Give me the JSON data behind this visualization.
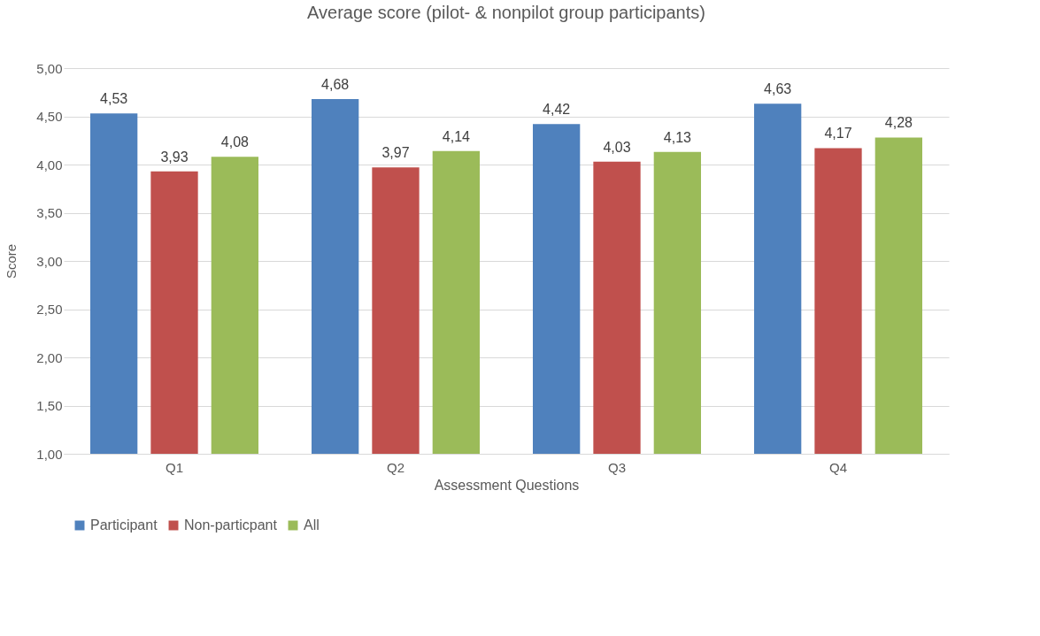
{
  "chart_data": {
    "type": "bar",
    "title": "Average score (pilot- & nonpilot group participants)",
    "xlabel": "Assessment Questions",
    "ylabel": "Score",
    "categories": [
      "Q1",
      "Q2",
      "Q3",
      "Q4"
    ],
    "series": [
      {
        "name": "Participant",
        "color": "#4f81bd",
        "values": [
          4.53,
          4.68,
          4.42,
          4.63
        ],
        "value_labels": [
          "4,53",
          "4,68",
          "4,42",
          "4,63"
        ]
      },
      {
        "name": "Non-particpant",
        "color": "#c0504d",
        "values": [
          3.93,
          3.97,
          4.03,
          4.17
        ],
        "value_labels": [
          "3,93",
          "3,97",
          "4,03",
          "4,17"
        ]
      },
      {
        "name": "All",
        "color": "#9bbb59",
        "values": [
          4.08,
          4.14,
          4.13,
          4.28
        ],
        "value_labels": [
          "4,08",
          "4,14",
          "4,13",
          "4,28"
        ]
      }
    ],
    "ylim": [
      1,
      5
    ],
    "yticks": [
      {
        "value": 1,
        "label": "1,00"
      },
      {
        "value": 1.5,
        "label": "1,50"
      },
      {
        "value": 2,
        "label": "2,00"
      },
      {
        "value": 2.5,
        "label": "2,50"
      },
      {
        "value": 3,
        "label": "3,00"
      },
      {
        "value": 3.5,
        "label": "3,50"
      },
      {
        "value": 4,
        "label": "4,00"
      },
      {
        "value": 4.5,
        "label": "4,50"
      },
      {
        "value": 5,
        "label": "5,00"
      }
    ],
    "grid": "y",
    "legend": "bottom"
  }
}
